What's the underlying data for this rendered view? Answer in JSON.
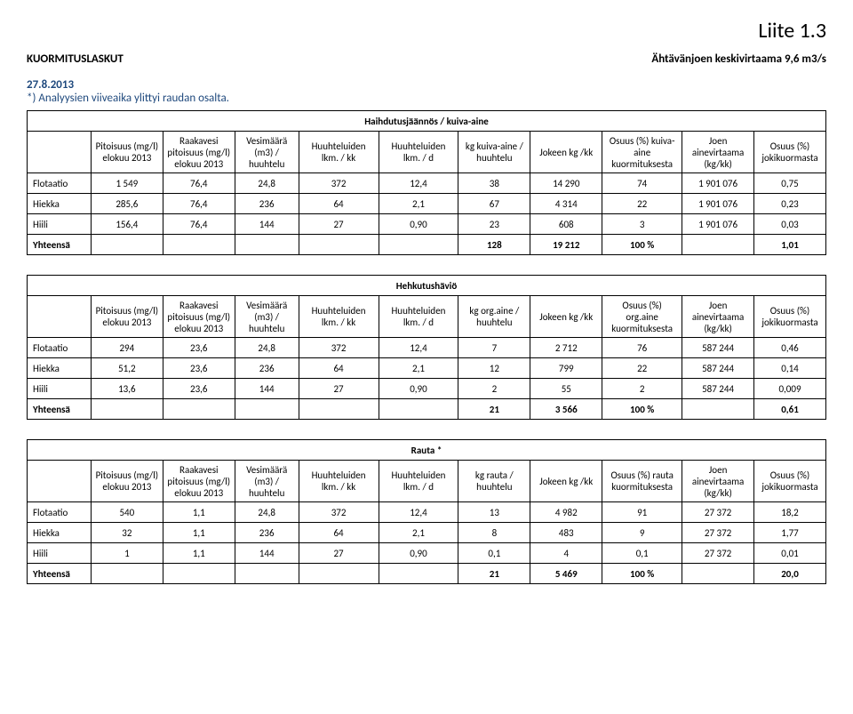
{
  "liite": "Liite 1.3",
  "title_left": "KUORMITUSLASKUT",
  "title_right": "Ähtävänjoen keskivirtaama 9,6 m3/s",
  "date": "27.8.2013",
  "note": "*) Analyysien viiveaika ylittyi raudan osalta.",
  "accent_color": "#1f497d",
  "tables": [
    {
      "section": "Haihdutusjäännös / kuiva-aine",
      "headers": [
        "",
        "Pitoisuus (mg/l) elokuu 2013",
        "Raakavesi pitoisuus (mg/l) elokuu 2013",
        "Vesimäärä (m3) / huuhtelu",
        "Huuhteluiden lkm. / kk",
        "Huuhteluiden lkm. / d",
        "kg kuiva-aine / huuhtelu",
        "Jokeen kg /kk",
        "Osuus (%) kuiva-aine kuormituksesta",
        "Joen ainevirtaama (kg/kk)",
        "Osuus (%) jokikuormasta"
      ],
      "rows": [
        [
          "Flotaatio",
          "1 549",
          "76,4",
          "24,8",
          "372",
          "12,4",
          "38",
          "14 290",
          "74",
          "1 901 076",
          "0,75"
        ],
        [
          "Hiekka",
          "285,6",
          "76,4",
          "236",
          "64",
          "2,1",
          "67",
          "4 314",
          "22",
          "1 901 076",
          "0,23"
        ],
        [
          "Hiili",
          "156,4",
          "76,4",
          "144",
          "27",
          "0,90",
          "23",
          "608",
          "3",
          "1 901 076",
          "0,03"
        ]
      ],
      "sum": [
        "Yhteensä",
        "",
        "",
        "",
        "",
        "",
        "128",
        "19 212",
        "100 %",
        "",
        "1,01"
      ]
    },
    {
      "section": "Hehkutushäviö",
      "headers": [
        "",
        "Pitoisuus (mg/l) elokuu 2013",
        "Raakavesi pitoisuus (mg/l) elokuu 2013",
        "Vesimäärä (m3) / huuhtelu",
        "Huuhteluiden lkm. / kk",
        "Huuhteluiden lkm. / d",
        "kg org.aine / huuhtelu",
        "Jokeen kg /kk",
        "Osuus (%) org.aine kuormituksesta",
        "Joen ainevirtaama (kg/kk)",
        "Osuus (%) jokikuormasta"
      ],
      "rows": [
        [
          "Flotaatio",
          "294",
          "23,6",
          "24,8",
          "372",
          "12,4",
          "7",
          "2 712",
          "76",
          "587 244",
          "0,46"
        ],
        [
          "Hiekka",
          "51,2",
          "23,6",
          "236",
          "64",
          "2,1",
          "12",
          "799",
          "22",
          "587 244",
          "0,14"
        ],
        [
          "Hiili",
          "13,6",
          "23,6",
          "144",
          "27",
          "0,90",
          "2",
          "55",
          "2",
          "587 244",
          "0,009"
        ]
      ],
      "sum": [
        "Yhteensä",
        "",
        "",
        "",
        "",
        "",
        "21",
        "3 566",
        "100 %",
        "",
        "0,61"
      ]
    },
    {
      "section": "Rauta *",
      "headers": [
        "",
        "Pitoisuus (mg/l) elokuu 2013",
        "Raakavesi pitoisuus (mg/l) elokuu 2013",
        "Vesimäärä (m3) / huuhtelu",
        "Huuhteluiden lkm. / kk",
        "Huuhteluiden lkm. / d",
        "kg rauta / huuhtelu",
        "Jokeen kg /kk",
        "Osuus (%) rauta kuormituksesta",
        "Joen ainevirtaama (kg/kk)",
        "Osuus (%) jokikuormasta"
      ],
      "rows": [
        [
          "Flotaatio",
          "540",
          "1,1",
          "24,8",
          "372",
          "12,4",
          "13",
          "4 982",
          "91",
          "27 372",
          "18,2"
        ],
        [
          "Hiekka",
          "32",
          "1,1",
          "236",
          "64",
          "2,1",
          "8",
          "483",
          "9",
          "27 372",
          "1,77"
        ],
        [
          "Hiili",
          "1",
          "1,1",
          "144",
          "27",
          "0,90",
          "0,1",
          "4",
          "0,1",
          "27 372",
          "0,01"
        ]
      ],
      "sum": [
        "Yhteensä",
        "",
        "",
        "",
        "",
        "",
        "21",
        "5 469",
        "100 %",
        "",
        "20,0"
      ]
    }
  ]
}
